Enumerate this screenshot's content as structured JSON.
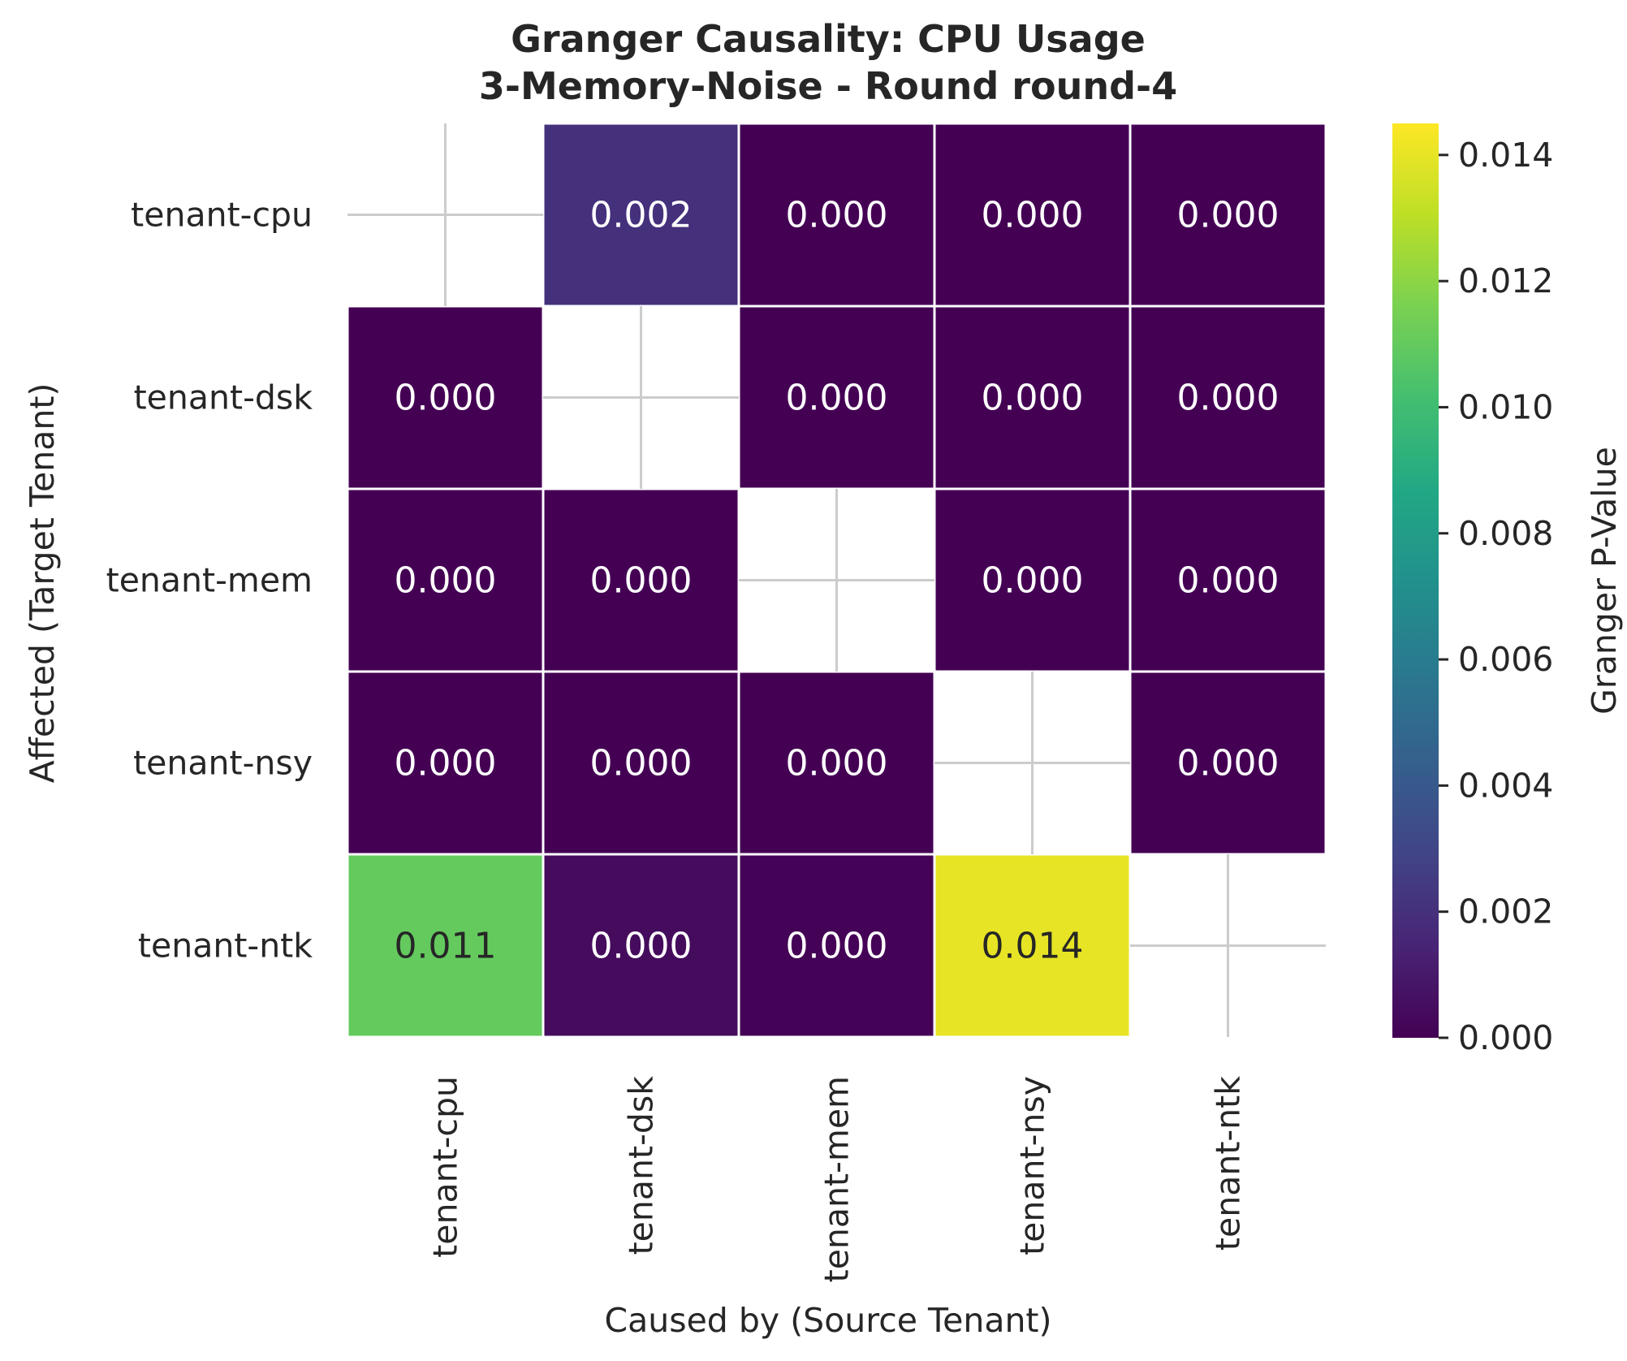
{
  "chart_data": {
    "type": "heatmap",
    "title": "Granger Causality: CPU Usage",
    "subtitle": "3-Memory-Noise - Round round-4",
    "xlabel": "Caused by (Source Tenant)",
    "ylabel": "Affected (Target Tenant)",
    "x_categories": [
      "tenant-cpu",
      "tenant-dsk",
      "tenant-mem",
      "tenant-nsy",
      "tenant-ntk"
    ],
    "y_categories": [
      "tenant-cpu",
      "tenant-dsk",
      "tenant-mem",
      "tenant-nsy",
      "tenant-ntk"
    ],
    "values": [
      [
        null,
        0.002,
        0.0,
        0.0,
        0.0
      ],
      [
        0.0,
        null,
        0.0,
        0.0,
        0.0
      ],
      [
        0.0,
        0.0,
        null,
        0.0,
        0.0
      ],
      [
        0.0,
        0.0,
        0.0,
        null,
        0.0
      ],
      [
        0.011,
        0.0004,
        0.0001,
        0.014,
        null
      ]
    ],
    "cell_labels": [
      [
        "",
        "0.002",
        "0.000",
        "0.000",
        "0.000"
      ],
      [
        "0.000",
        "",
        "0.000",
        "0.000",
        "0.000"
      ],
      [
        "0.000",
        "0.000",
        "",
        "0.000",
        "0.000"
      ],
      [
        "0.000",
        "0.000",
        "0.000",
        "",
        "0.000"
      ],
      [
        "0.011",
        "0.000",
        "0.000",
        "0.014",
        ""
      ]
    ],
    "colorbar": {
      "label": "Granger P-Value",
      "colormap": "viridis",
      "range": [
        0,
        0.0145
      ],
      "ticks": [
        0.0,
        0.002,
        0.004,
        0.006,
        0.008,
        0.01,
        0.012,
        0.014
      ],
      "tick_labels": [
        "0.000",
        "0.002",
        "0.004",
        "0.006",
        "0.008",
        "0.010",
        "0.012",
        "0.014"
      ]
    },
    "masked_cell_marker": "cross",
    "colors": {
      "cell_border": "#ffffff",
      "masked_cross": "#cccccc",
      "text_dark": "#262626",
      "text_light": "#ffffff"
    }
  }
}
